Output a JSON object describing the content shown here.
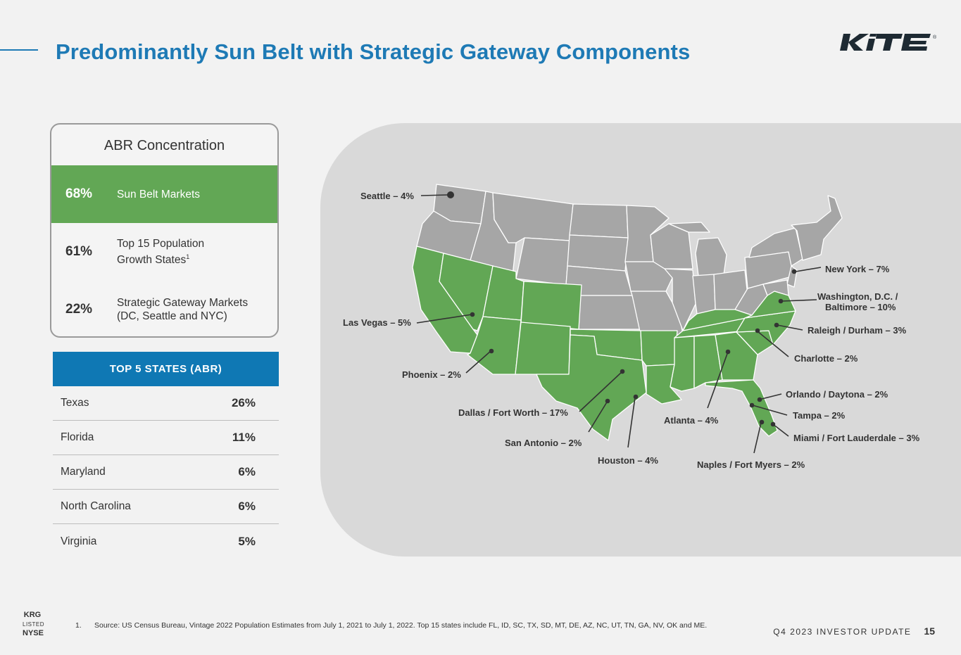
{
  "header": {
    "title": "Predominantly Sun Belt with Strategic Gateway Components",
    "logo_text": "KITE"
  },
  "abr_card": {
    "title": "ABR Concentration",
    "rows": [
      {
        "pct": "68%",
        "label_lines": [
          "Sun Belt Markets"
        ],
        "highlight": true
      },
      {
        "pct": "61%",
        "label_lines": [
          "Top 15 Population",
          "Growth States"
        ],
        "sup": "1",
        "highlight": false
      },
      {
        "pct": "22%",
        "label_lines": [
          "Strategic Gateway Markets",
          "(DC, Seattle and NYC)"
        ],
        "highlight": false
      }
    ]
  },
  "top_states": {
    "title": "TOP 5 STATES (ABR)",
    "rows": [
      {
        "state": "Texas",
        "value": "26%"
      },
      {
        "state": "Florida",
        "value": "11%"
      },
      {
        "state": "Maryland",
        "value": "6%"
      },
      {
        "state": "North Carolina",
        "value": "6%"
      },
      {
        "state": "Virginia",
        "value": "5%"
      }
    ]
  },
  "map": {
    "colors": {
      "sunbelt": "#62a755",
      "other": "#a6a6a6",
      "panel": "#d9d9d9",
      "dot": "#333333"
    },
    "labels": {
      "seattle": "Seattle – 4%",
      "las_vegas": "Las Vegas – 5%",
      "phoenix": "Phoenix – 2%",
      "dallas": "Dallas / Fort Worth – 17%",
      "san_antonio": "San Antonio – 2%",
      "houston": "Houston – 4%",
      "atlanta": "Atlanta – 4%",
      "naples": "Naples / Fort Myers – 2%",
      "new_york": "New York – 7%",
      "washington_1": "Washington, D.C. /",
      "washington_2": "Baltimore – 10%",
      "raleigh": "Raleigh / Durham – 3%",
      "charlotte": "Charlotte – 2%",
      "orlando": "Orlando / Daytona – 2%",
      "tampa": "Tampa – 2%",
      "miami": "Miami / Fort Lauderdale – 3%"
    }
  },
  "footer": {
    "ticker": "KRG",
    "listed": "LISTED",
    "exchange": "NYSE",
    "footnote_num": "1.",
    "footnote": "Source: US Census Bureau, Vintage 2022 Population Estimates from July 1, 2021 to July 1, 2022. Top 15 states include FL, ID, SC, TX, SD, MT, DE, AZ, NC, UT, TN, GA, NV, OK and ME.",
    "doc_label": "Q4 2023 INVESTOR UPDATE",
    "page_number": "15"
  }
}
